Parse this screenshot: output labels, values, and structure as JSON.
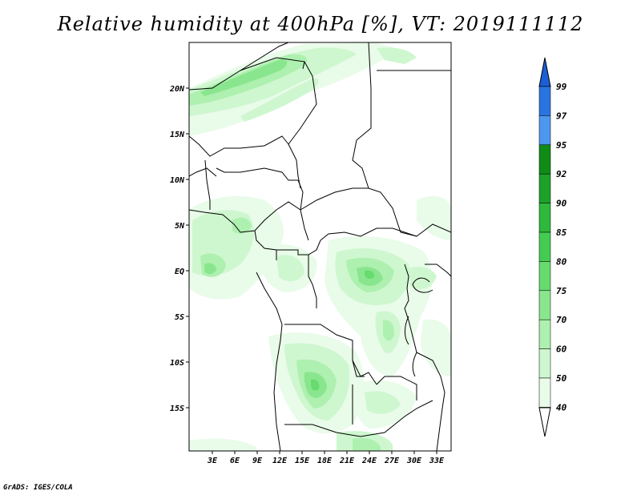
{
  "title": "Relative humidity at 400hPa [%], VT: 2019111112",
  "credit": "GrADS: IGES/COLA",
  "map": {
    "lat_labels": [
      "20N",
      "15N",
      "10N",
      "5N",
      "EQ",
      "5S",
      "10S",
      "15S"
    ],
    "lon_labels": [
      "3E",
      "6E",
      "9E",
      "12E",
      "15E",
      "18E",
      "21E",
      "24E",
      "27E",
      "30E",
      "33E"
    ]
  },
  "colorbar": {
    "levels": [
      "99",
      "97",
      "95",
      "92",
      "90",
      "85",
      "80",
      "75",
      "70",
      "60",
      "50",
      "40"
    ],
    "colors": [
      "#1a5fd6",
      "#2a74e2",
      "#4d97ee",
      "#0f8c18",
      "#1ea12a",
      "#2eb83c",
      "#44cc52",
      "#66db6e",
      "#8ae68e",
      "#aef0b0",
      "#cef7cf",
      "#e9fbe9"
    ]
  }
}
